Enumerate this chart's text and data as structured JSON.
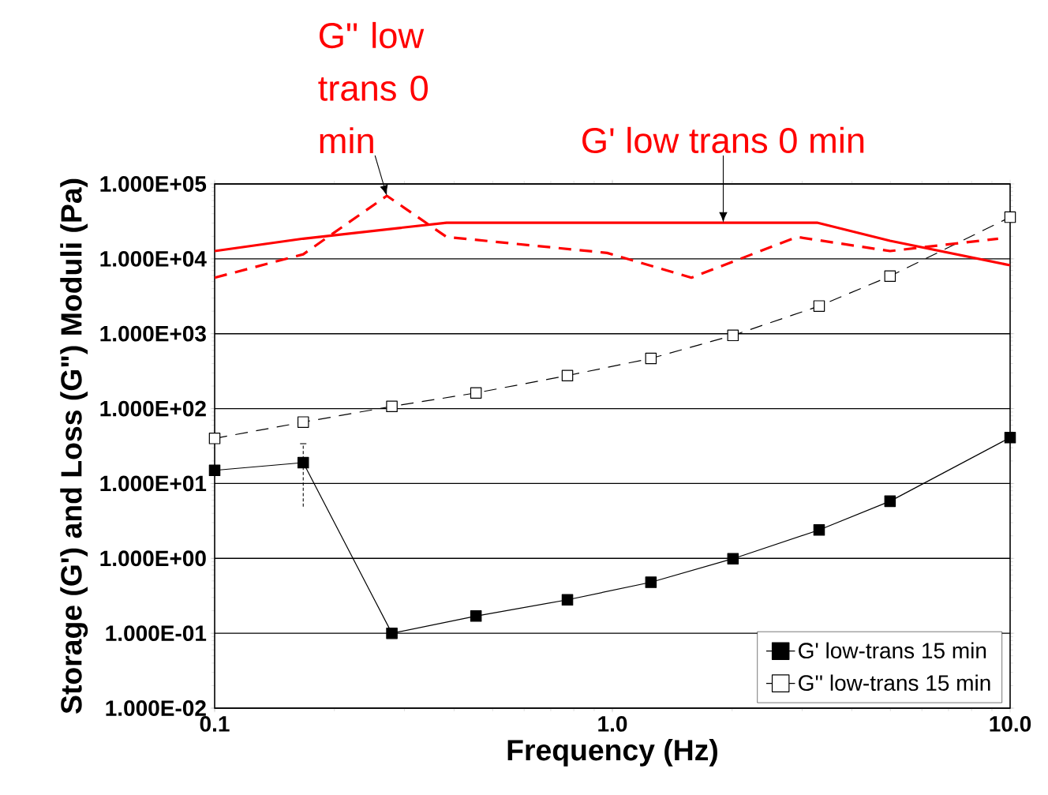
{
  "chart_data": {
    "type": "line",
    "xlabel": "Frequency (Hz)",
    "ylabel": "Storage (G') and Loss (G\") Moduli (Pa)",
    "log": "xy",
    "xlim": [
      0.1,
      10
    ],
    "ylim": [
      0.01,
      100000
    ],
    "xticks": [
      0.1,
      {
        "value": 1,
        "label": "1.0"
      },
      {
        "value": 10,
        "label": "10.0"
      }
    ],
    "yticks": [
      {
        "value": 0.01,
        "label": "1.000E-02"
      },
      {
        "value": 0.1,
        "label": "1.000E-01"
      },
      {
        "value": 1,
        "label": "1.000E+00"
      },
      {
        "value": 10,
        "label": "1.000E+01"
      },
      {
        "value": 100,
        "label": "1.000E+02"
      },
      {
        "value": 1000,
        "label": "1.000E+03"
      },
      {
        "value": 10000,
        "label": "1.000E+04"
      },
      {
        "value": 100000,
        "label": "1.000E+05"
      }
    ],
    "grid": "y",
    "legend": "bottom right",
    "series": [
      {
        "name": "G' low-trans 15 min",
        "color": "#000000",
        "marker": "square",
        "line_style": "solid",
        "x": [
          0.1,
          0.167,
          0.279,
          0.454,
          0.771,
          1.25,
          2.01,
          3.31,
          4.99,
          10
        ],
        "values": [
          15,
          19,
          0.1,
          0.17,
          0.28,
          0.48,
          0.99,
          2.4,
          5.8,
          41
        ],
        "errors": [
          null,
          [
            4.9,
            34
          ],
          null,
          null,
          null,
          null,
          null,
          null,
          null,
          null
        ]
      },
      {
        "name": "G'' low-trans 15 min",
        "color": "#000000",
        "marker": "square",
        "line_style": "dashed",
        "x": [
          0.1,
          0.167,
          0.279,
          0.454,
          0.771,
          1.25,
          2.01,
          3.31,
          4.99,
          10
        ],
        "values": [
          40,
          66,
          107,
          162,
          276,
          468,
          950,
          2340,
          5870,
          36000
        ]
      },
      {
        "color": "#ff0000",
        "marker": "none",
        "line_style": "solid",
        "x": [
          0.1,
          0.167,
          0.383,
          3.27,
          4.99,
          10
        ],
        "values": [
          12700,
          18600,
          30400,
          30400,
          17400,
          8200
        ]
      },
      {
        "color": "#ff0000",
        "marker": "none",
        "line_style": "dashed",
        "x": [
          0.1,
          0.167,
          0.271,
          0.383,
          0.97,
          1.58,
          2.91,
          4.99,
          9.33
        ],
        "values": [
          5600,
          11500,
          69500,
          19600,
          12000,
          5600,
          19600,
          12700,
          18600
        ]
      }
    ],
    "annotations": [
      {
        "text": "G\" low trans 0 min",
        "x": 0.271,
        "y": 69500
      },
      {
        "text": "G' low trans 0 min",
        "x": 1.9,
        "y": 30400
      }
    ]
  }
}
